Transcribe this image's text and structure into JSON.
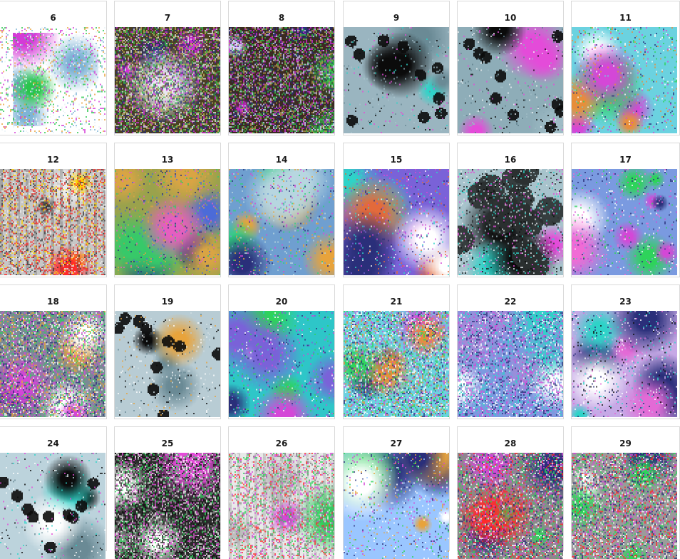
{
  "gallery": {
    "items": [
      {
        "label": "6",
        "style": "white-blob",
        "colors": [
          "#ffffff",
          "#e9f3f7",
          "#7fb4d6",
          "#d43bd6",
          "#29c54c",
          "#e8a33b"
        ]
      },
      {
        "label": "7",
        "style": "noise-dark",
        "colors": [
          "#4a3f22",
          "#2a2f7a",
          "#c2b45c",
          "#d02bd8",
          "#36c24f",
          "#e8e8f0"
        ]
      },
      {
        "label": "8",
        "style": "noise-dark",
        "colors": [
          "#3b2a21",
          "#2a2f7a",
          "#b49b4c",
          "#d02bd8",
          "#36c24f",
          "#d9d2ff"
        ]
      },
      {
        "label": "9",
        "style": "light-spots",
        "colors": [
          "#9ab5c0",
          "#a9c4cc",
          "#0b0b0b",
          "#6a8a95",
          "#2ed3c8",
          "#e44bd9"
        ]
      },
      {
        "label": "10",
        "style": "light-spots",
        "colors": [
          "#8eadb8",
          "#9fbcc6",
          "#0b0b0b",
          "#5e7f8a",
          "#f0f3f6",
          "#e44bd9"
        ]
      },
      {
        "label": "11",
        "style": "color-blobs",
        "colors": [
          "#6bd2e0",
          "#d447d7",
          "#2ed35b",
          "#ffffff",
          "#2a2f7a",
          "#e78e3a"
        ]
      },
      {
        "label": "12",
        "style": "stripe-gray",
        "colors": [
          "#c7c7c7",
          "#ededed",
          "#3a3a3a",
          "#d6342b",
          "#ff2a2a",
          "#ffd000"
        ]
      },
      {
        "label": "13",
        "style": "color-blobs",
        "colors": [
          "#9aa24c",
          "#4c6bd8",
          "#e55ec0",
          "#2a2f7a",
          "#37c969",
          "#d9a444"
        ]
      },
      {
        "label": "14",
        "style": "color-blobs",
        "colors": [
          "#6f9fd0",
          "#d947d6",
          "#2a2f7a",
          "#2fd17c",
          "#e8a33b",
          "#b7d6e0"
        ]
      },
      {
        "label": "15",
        "style": "color-blobs",
        "colors": [
          "#7a62d8",
          "#e36a3b",
          "#d447d7",
          "#ffffff",
          "#2ed3c8",
          "#2a2f7a"
        ]
      },
      {
        "label": "16",
        "style": "dark-blocks",
        "colors": [
          "#a7c3cc",
          "#0b0b0b",
          "#2a2f2f",
          "#e8eef2",
          "#2ed3c8",
          "#e44bd9"
        ]
      },
      {
        "label": "17",
        "style": "color-blobs",
        "colors": [
          "#7a9ae0",
          "#d447d7",
          "#2ed35b",
          "#2a2f7a",
          "#f06bd5",
          "#ffffff"
        ]
      },
      {
        "label": "18",
        "style": "noise-mixed",
        "colors": [
          "#7a8a95",
          "#d447d7",
          "#ffffff",
          "#2ed35b",
          "#e8a33b",
          "#2a2f7a"
        ]
      },
      {
        "label": "19",
        "style": "light-spots",
        "colors": [
          "#b8ccd4",
          "#cfdde2",
          "#0b0b0b",
          "#6a8a95",
          "#ffffff",
          "#e8a33b"
        ]
      },
      {
        "label": "20",
        "style": "color-blobs",
        "colors": [
          "#2ec6c8",
          "#d447d7",
          "#7a62d8",
          "#2ed35b",
          "#ffffff",
          "#2a2f7a"
        ]
      },
      {
        "label": "21",
        "style": "noise-mixed",
        "colors": [
          "#6bd2e0",
          "#d447d7",
          "#2ed35b",
          "#ffffff",
          "#2a2f7a",
          "#e78e3a"
        ]
      },
      {
        "label": "22",
        "style": "noise-mixed",
        "colors": [
          "#7a9ae0",
          "#d447d7",
          "#ffffff",
          "#2ed3c8",
          "#2a2f7a",
          "#a48ad8"
        ]
      },
      {
        "label": "23",
        "style": "color-blobs",
        "colors": [
          "#c6a9e6",
          "#2a2f7a",
          "#e36ad6",
          "#ffffff",
          "#2ed3c8",
          "#0b0b0b"
        ]
      },
      {
        "label": "24",
        "style": "light-spots",
        "colors": [
          "#bcd3dc",
          "#ffffff",
          "#0b0b0b",
          "#6a8a95",
          "#2ed3c8",
          "#e44bd9"
        ]
      },
      {
        "label": "25",
        "style": "noise-dark",
        "colors": [
          "#2a2a2a",
          "#8f8f8f",
          "#ffffff",
          "#e44bd9",
          "#2ed35b",
          "#0b0b0b"
        ]
      },
      {
        "label": "26",
        "style": "stripe-gray",
        "colors": [
          "#e9e9e9",
          "#bdbdbd",
          "#7a7a7a",
          "#d447d7",
          "#2ed35b",
          "#ff2a2a"
        ]
      },
      {
        "label": "27",
        "style": "color-blobs",
        "colors": [
          "#9ac6ff",
          "#d447d7",
          "#2ed35b",
          "#ffffff",
          "#2a2f7a",
          "#e8a33b"
        ]
      },
      {
        "label": "28",
        "style": "noise-mixed",
        "colors": [
          "#8a8a8a",
          "#ffffff",
          "#d447d7",
          "#2ed35b",
          "#ff2a2a",
          "#2a2f7a"
        ]
      },
      {
        "label": "29",
        "style": "noise-mixed",
        "colors": [
          "#9b9b9b",
          "#ffffff",
          "#d447d7",
          "#2ed35b",
          "#ff2a2a",
          "#2a2f7a"
        ]
      }
    ]
  }
}
